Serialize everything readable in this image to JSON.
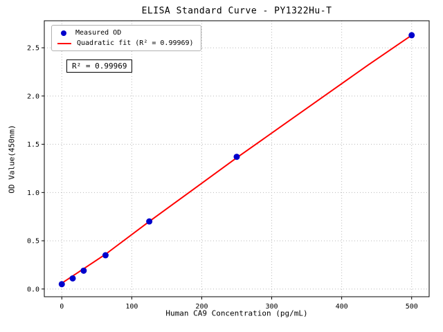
{
  "chart_data": {
    "type": "scatter",
    "title": "ELISA Standard Curve - PY1322Hu-T",
    "xlabel": "Human CA9 Concentration (pg/mL)",
    "ylabel": "OD Value(450nm)",
    "annotation": "R² = 0.99969",
    "xlim": [
      -25,
      525
    ],
    "ylim": [
      -0.08,
      2.78
    ],
    "xticks": [
      0,
      100,
      200,
      300,
      400,
      500
    ],
    "yticks": [
      0.0,
      0.5,
      1.0,
      1.5,
      2.0,
      2.5
    ],
    "grid": true,
    "legend_position": "upper-left",
    "colors": {
      "points": "#0000cc",
      "fit_line": "#ff0000",
      "grid": "#b8b8b8",
      "axis": "#000000"
    },
    "series": [
      {
        "name": "Measured OD",
        "kind": "scatter",
        "color": "#0000cc",
        "x": [
          0,
          15.6,
          31.25,
          62.5,
          125,
          250,
          500
        ],
        "y": [
          0.05,
          0.11,
          0.19,
          0.35,
          0.7,
          1.37,
          2.63
        ]
      },
      {
        "name": "Quadratic fit (R² = 0.99969)",
        "kind": "line",
        "color": "#ff0000",
        "x": [
          0,
          62.5,
          125,
          187.5,
          250,
          312.5,
          375,
          437.5,
          500
        ],
        "y": [
          0.06,
          0.36,
          0.7,
          1.03,
          1.36,
          1.68,
          2.0,
          2.32,
          2.63
        ]
      }
    ]
  }
}
